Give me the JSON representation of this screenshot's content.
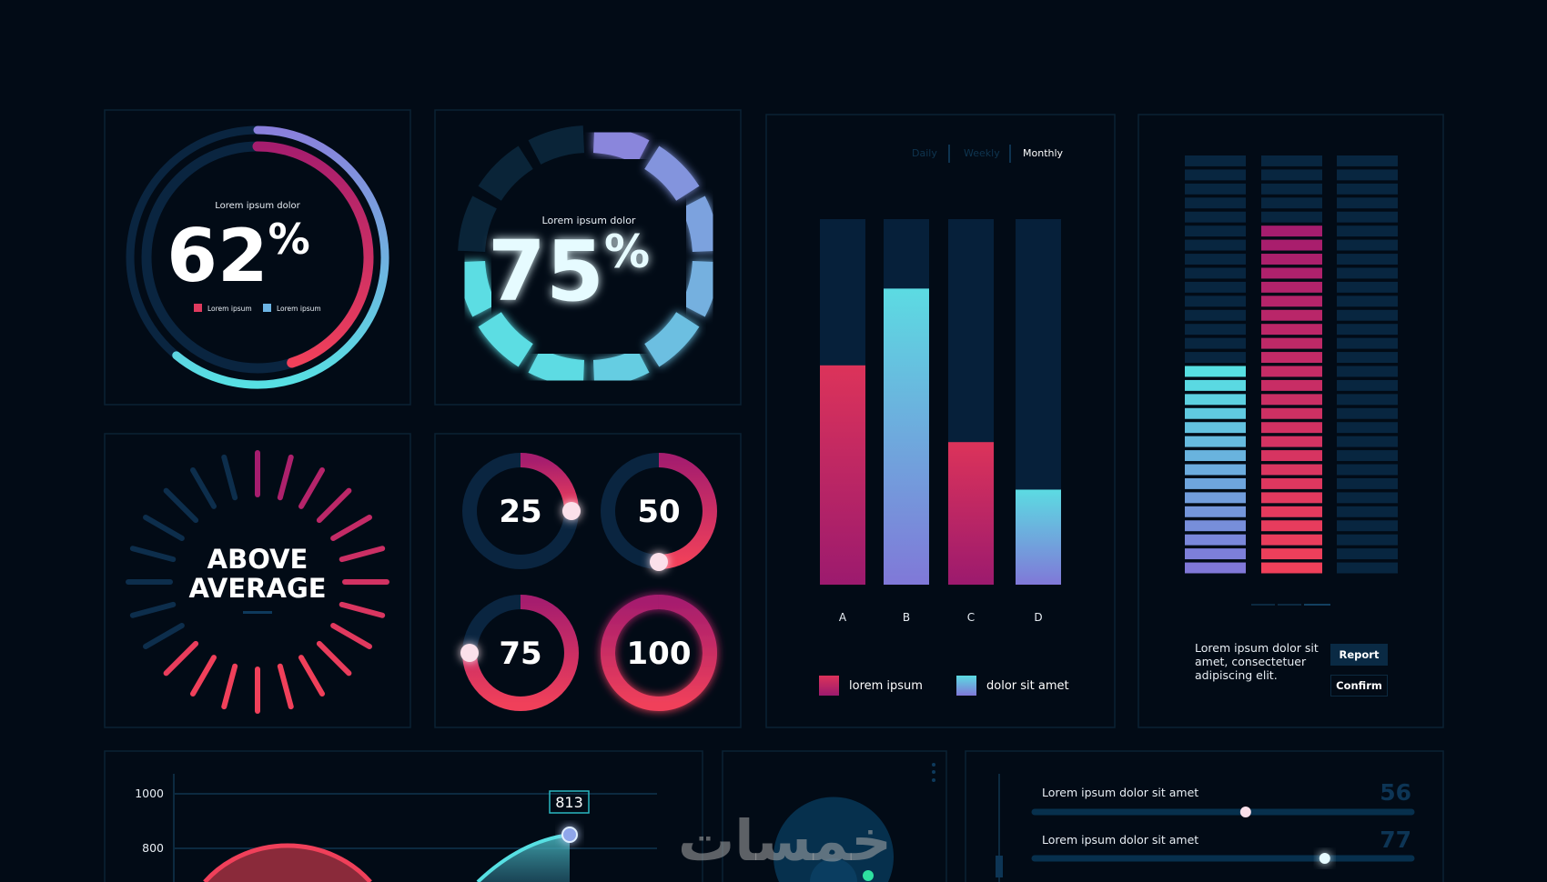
{
  "colors": {
    "background": "#020b16",
    "panel_border": "#0b2234",
    "track": "#0a2540",
    "red": "#f0405a",
    "magenta": "#a61d6e",
    "cyan": "#57e0e3",
    "purple": "#8078d8"
  },
  "gauge_62": {
    "caption": "Lorem ipsum dolor",
    "value": "62",
    "unit": "%",
    "legend": [
      "Lorem ipsum",
      "Lorem ipsum"
    ],
    "outer_fraction": 0.61,
    "inner_fraction": 0.45
  },
  "gauge_75": {
    "caption": "Lorem ipsum dolor",
    "value": "75",
    "unit": "%",
    "segments_total": 12,
    "segments_lit": 9
  },
  "above_average": {
    "line1": "ABOVE",
    "line2": "AVERAGE"
  },
  "rings": [
    {
      "label": "25",
      "percent": 25
    },
    {
      "label": "50",
      "percent": 50
    },
    {
      "label": "75",
      "percent": 75
    },
    {
      "label": "100",
      "percent": 100
    }
  ],
  "bar_panel": {
    "tabs": [
      {
        "label": "Daily",
        "active": false
      },
      {
        "label": "Weekly",
        "active": false
      },
      {
        "label": "Monthly",
        "active": true
      }
    ]
  },
  "chart_data": {
    "type": "bar",
    "categories": [
      "A",
      "B",
      "C",
      "D"
    ],
    "series": [
      {
        "name": "lorem ipsum",
        "values": [
          60,
          null,
          39,
          null
        ]
      },
      {
        "name": "dolor sit amet",
        "values": [
          null,
          81,
          null,
          26
        ]
      }
    ],
    "ylim": [
      0,
      100
    ],
    "grid": false,
    "legend": "bottom"
  },
  "equalizer": {
    "rows": 30,
    "columns": [
      {
        "lit": 15,
        "scheme": "cyan"
      },
      {
        "lit": 25,
        "scheme": "red"
      },
      {
        "lit": 0,
        "scheme": "none"
      }
    ]
  },
  "info": {
    "text": "Lorem ipsum dolor sit amet, consectetuer adipiscing elit.",
    "report_label": "Report",
    "confirm_label": "Confirm"
  },
  "line_chart": {
    "y_ticks": [
      "1000",
      "800"
    ],
    "callout": "813"
  },
  "sliders": [
    {
      "label": "Lorem ipsum dolor sit amet",
      "value": "56",
      "percent": 56
    },
    {
      "label": "Lorem ipsum dolor sit amet",
      "value": "77",
      "percent": 77
    }
  ],
  "watermark": "خمسات"
}
